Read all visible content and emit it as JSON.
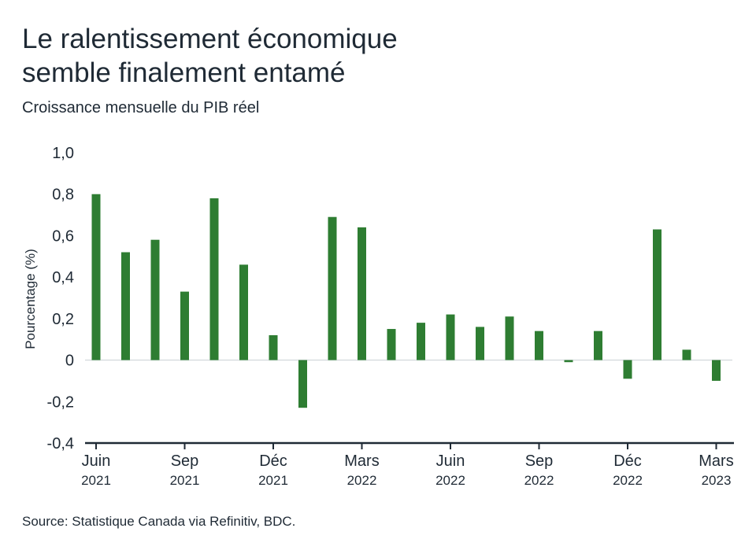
{
  "title_line1": "Le ralentissement économique",
  "title_line2": "semble finalement entamé",
  "subtitle": "Croissance mensuelle du PIB réel",
  "source": "Source: Statistique Canada via Refinitiv, BDC.",
  "colors": {
    "bar": "#2e7d32",
    "axis": "#1f2a35",
    "text": "#1f2a35"
  },
  "chart_data": {
    "type": "bar",
    "categories": [
      "2021-06",
      "2021-07",
      "2021-08",
      "2021-09",
      "2021-10",
      "2021-11",
      "2021-12",
      "2022-01",
      "2022-02",
      "2022-03",
      "2022-04",
      "2022-05",
      "2022-06",
      "2022-07",
      "2022-08",
      "2022-09",
      "2022-10",
      "2022-11",
      "2022-12",
      "2023-01",
      "2023-02",
      "2023-03"
    ],
    "values": [
      0.8,
      0.52,
      0.58,
      0.33,
      0.78,
      0.46,
      0.12,
      -0.23,
      0.69,
      0.64,
      0.15,
      0.18,
      0.22,
      0.16,
      0.21,
      0.14,
      -0.01,
      0.14,
      -0.09,
      0.63,
      0.05,
      -0.1
    ],
    "ylabel": "Pourcentage (%)",
    "ylim": [
      -0.4,
      1.0
    ],
    "yticks": [
      {
        "value": 1.0,
        "label": "1,0"
      },
      {
        "value": 0.8,
        "label": "0,8"
      },
      {
        "value": 0.6,
        "label": "0,6"
      },
      {
        "value": 0.4,
        "label": "0,4"
      },
      {
        "value": 0.2,
        "label": "0,2"
      },
      {
        "value": 0,
        "label": "0"
      },
      {
        "value": -0.2,
        "label": "-0,2"
      },
      {
        "value": -0.4,
        "label": "-0,4"
      }
    ],
    "xticks": [
      {
        "index": 0,
        "month": "Juin",
        "year": "2021"
      },
      {
        "index": 3,
        "month": "Sep",
        "year": "2021"
      },
      {
        "index": 6,
        "month": "Déc",
        "year": "2021"
      },
      {
        "index": 9,
        "month": "Mars",
        "year": "2022"
      },
      {
        "index": 12,
        "month": "Juin",
        "year": "2022"
      },
      {
        "index": 15,
        "month": "Sep",
        "year": "2022"
      },
      {
        "index": 18,
        "month": "Déc",
        "year": "2022"
      },
      {
        "index": 21,
        "month": "Mars",
        "year": "2023"
      }
    ],
    "grid": false,
    "legend": "none"
  }
}
